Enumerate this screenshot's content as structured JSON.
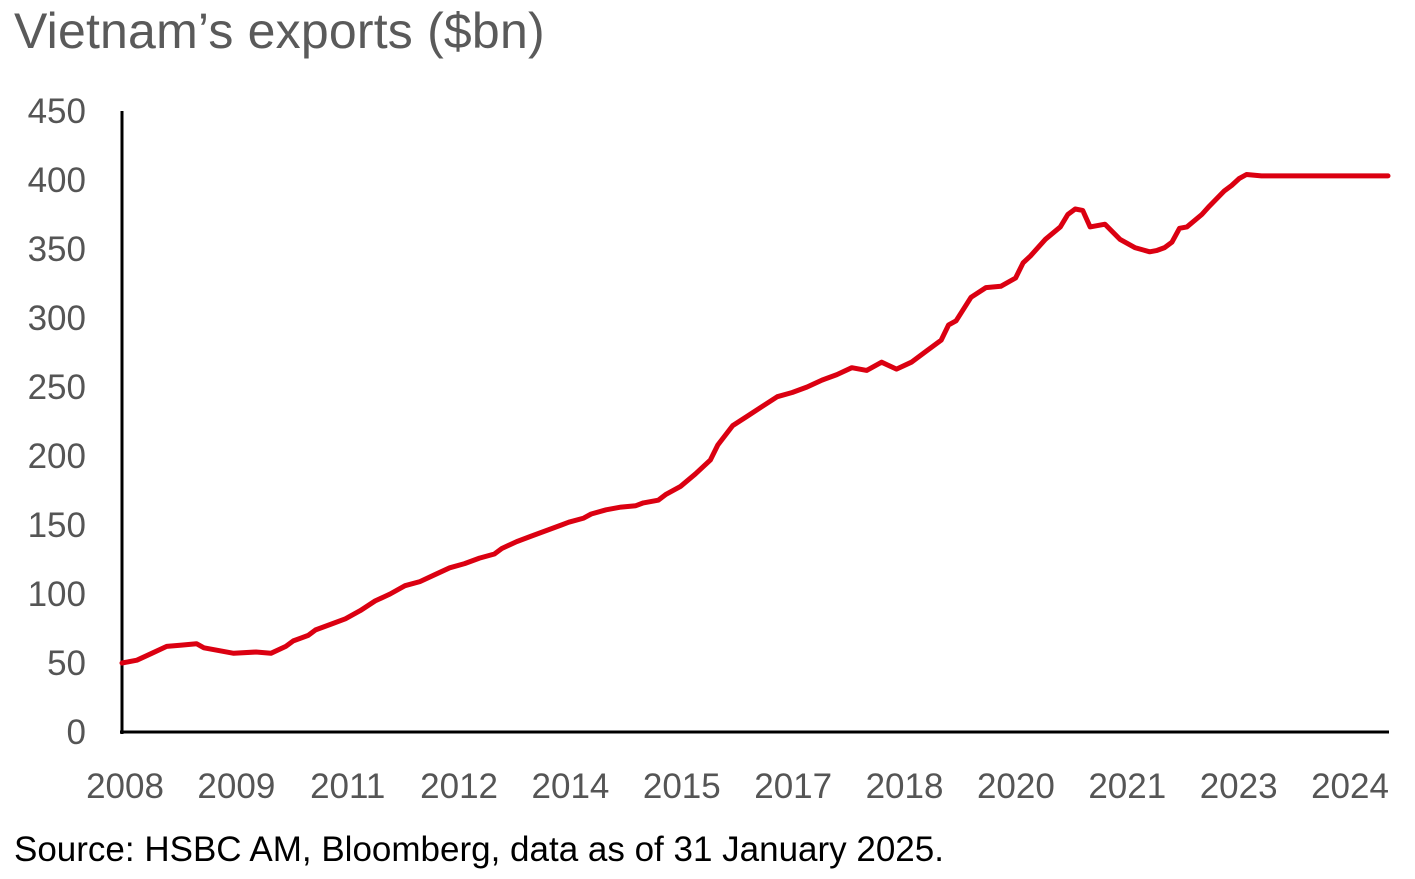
{
  "title": "Vietnam’s exports ($bn)",
  "source": "Source: HSBC AM, Bloomberg, data as of 31 January 2025.",
  "colors": {
    "series": "#db0011",
    "axis": "#000000",
    "tick_text": "#555555",
    "title_text": "#5a5a5a"
  },
  "chart_data": {
    "type": "line",
    "title": "Vietnam’s exports ($bn)",
    "xlabel": "",
    "ylabel": "",
    "ylim": [
      0,
      450
    ],
    "xlim": [
      2008.0,
      2025.0
    ],
    "grid": false,
    "y_ticks": [
      0,
      50,
      100,
      150,
      200,
      250,
      300,
      350,
      400,
      450
    ],
    "x_tick_labels": [
      "2008",
      "2009",
      "2011",
      "2012",
      "2014",
      "2015",
      "2017",
      "2018",
      "2020",
      "2021",
      "2023",
      "2024"
    ],
    "series": [
      {
        "name": "Vietnam exports",
        "x": [
          2008.0,
          2008.2,
          2008.4,
          2008.6,
          2008.8,
          2009.0,
          2009.1,
          2009.3,
          2009.5,
          2009.8,
          2010.0,
          2010.2,
          2010.3,
          2010.5,
          2010.6,
          2010.8,
          2011.0,
          2011.2,
          2011.4,
          2011.6,
          2011.8,
          2012.0,
          2012.2,
          2012.4,
          2012.6,
          2012.8,
          2013.0,
          2013.1,
          2013.3,
          2013.5,
          2013.7,
          2013.9,
          2014.0,
          2014.2,
          2014.3,
          2014.5,
          2014.7,
          2014.9,
          2015.0,
          2015.2,
          2015.3,
          2015.5,
          2015.7,
          2015.9,
          2016.0,
          2016.2,
          2016.4,
          2016.6,
          2016.8,
          2017.0,
          2017.2,
          2017.4,
          2017.6,
          2017.8,
          2018.0,
          2018.2,
          2018.4,
          2018.6,
          2018.8,
          2019.0,
          2019.1,
          2019.2,
          2019.4,
          2019.6,
          2019.8,
          2020.0,
          2020.1,
          2020.2,
          2020.4,
          2020.6,
          2020.7,
          2020.8,
          2020.9,
          2021.0,
          2021.2,
          2021.4,
          2021.6,
          2021.8,
          2021.9,
          2022.0,
          2022.1,
          2022.2,
          2022.3,
          2022.5,
          2022.6,
          2022.8,
          2022.9,
          2023.0,
          2023.1,
          2023.3,
          2023.5,
          2023.7,
          2023.8,
          2024.0,
          2024.2,
          2024.4,
          2024.6,
          2024.8,
          2024.9,
          2025.0
        ],
        "values": [
          50,
          52,
          57,
          62,
          63,
          64,
          61,
          59,
          57,
          58,
          57,
          62,
          66,
          70,
          74,
          78,
          82,
          88,
          95,
          100,
          106,
          109,
          114,
          119,
          122,
          126,
          129,
          133,
          138,
          142,
          146,
          150,
          152,
          155,
          158,
          161,
          163,
          164,
          166,
          168,
          172,
          178,
          187,
          197,
          208,
          222,
          229,
          236,
          243,
          246,
          250,
          255,
          259,
          264,
          262,
          268,
          263,
          268,
          276,
          284,
          295,
          298,
          315,
          322,
          323,
          329,
          340,
          345,
          357,
          366,
          375,
          379,
          378,
          366,
          368,
          357,
          351,
          348,
          349,
          351,
          355,
          365,
          366,
          375,
          381,
          392,
          396,
          401,
          404,
          403,
          403,
          403,
          403,
          403,
          403,
          403,
          403,
          403,
          403,
          403
        ]
      }
    ]
  }
}
